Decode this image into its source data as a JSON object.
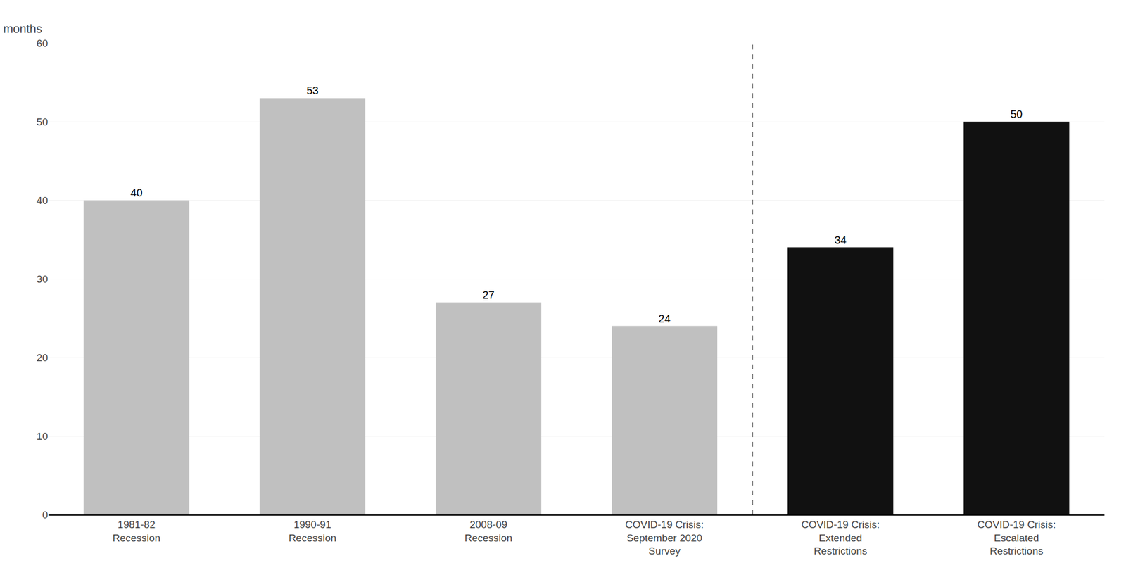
{
  "chart_data": {
    "type": "bar",
    "ylabel": "months",
    "categories": [
      "1981-82\nRecession",
      "1990-91\nRecession",
      "2008-09\nRecession",
      "COVID-19 Crisis:\nSeptember 2020\nSurvey",
      "COVID-19 Crisis:\nExtended\nRestrictions",
      "COVID-19 Crisis:\nEscalated\nRestrictions"
    ],
    "values": [
      40,
      53,
      27,
      24,
      34,
      50
    ],
    "colors": [
      "#c0c0c0",
      "#c0c0c0",
      "#c0c0c0",
      "#c0c0c0",
      "#111111",
      "#111111"
    ],
    "ylim": [
      0,
      60
    ],
    "yticks": [
      0,
      10,
      20,
      30,
      40,
      50,
      60
    ],
    "grid": true,
    "data_labels": true
  }
}
